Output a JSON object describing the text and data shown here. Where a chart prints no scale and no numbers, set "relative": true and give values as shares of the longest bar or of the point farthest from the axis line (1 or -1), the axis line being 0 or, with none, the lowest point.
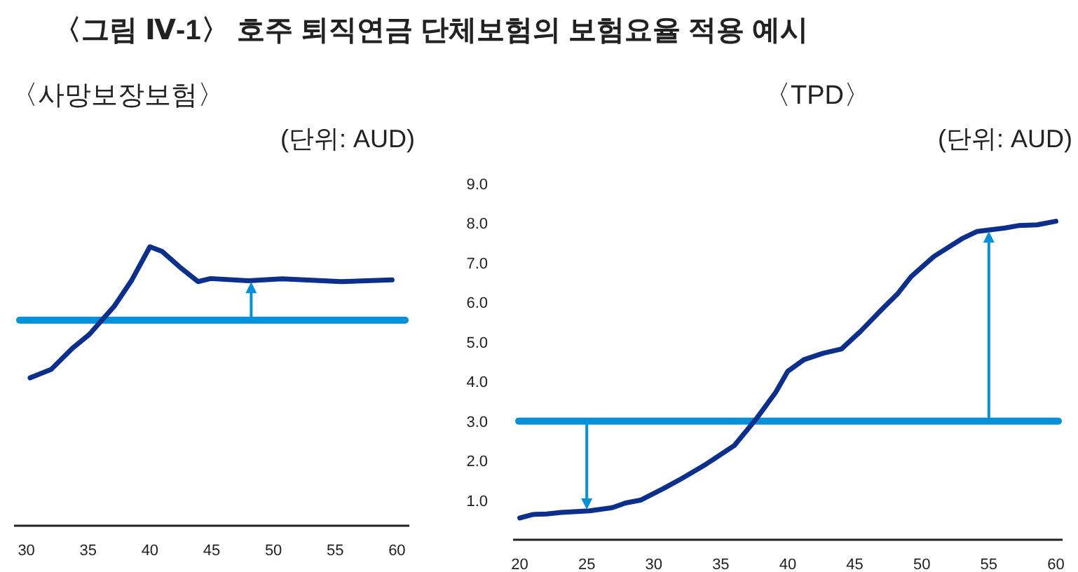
{
  "chart_data": [
    {
      "type": "line",
      "title": "〈사망보장보험〉",
      "relative": true,
      "annotations": [
        "〈그림 Ⅳ-1〉 호주 퇴직연금 단체보험의 보험요율 적용 예시",
        "(단위: AUD)"
      ],
      "xlim": [
        29,
        61
      ],
      "xticks": [
        30,
        35,
        40,
        45,
        50,
        55,
        60
      ],
      "series": [
        {
          "color": "#0b2f8a",
          "x": [
            30.3,
            32.0,
            33.7,
            35.1,
            37.1,
            38.5,
            40.0,
            41.0,
            42.4,
            43.9,
            44.9,
            48.0,
            50.7,
            55.5,
            59.6
          ],
          "values": [
            0.53,
            0.56,
            0.635,
            0.686,
            0.786,
            0.878,
            1,
            0.983,
            0.928,
            0.875,
            0.886,
            0.878,
            0.885,
            0.875,
            0.881
          ]
        }
      ],
      "ref_lines": [
        {
          "axis": "y",
          "value": 0.737,
          "color": "#0590d8"
        }
      ]
    },
    {
      "type": "line",
      "title": "〈TPD〉",
      "annotations": [
        "(단위: AUD)"
      ],
      "xlim": [
        19.5,
        60.5
      ],
      "xticks": [
        20,
        25,
        30,
        35,
        40,
        45,
        50,
        55,
        60
      ],
      "ylim": [
        0,
        9
      ],
      "yticks": [
        {
          "value": 1,
          "label": "1.0"
        },
        {
          "value": 2,
          "label": "2.0"
        },
        {
          "value": 3,
          "label": "3.0"
        },
        {
          "value": 4,
          "label": "4.0"
        },
        {
          "value": 5,
          "label": "5.0"
        },
        {
          "value": 6,
          "label": "6.0"
        },
        {
          "value": 7,
          "label": "7.0"
        },
        {
          "value": 8,
          "label": "8.0"
        },
        {
          "value": 9,
          "label": "9.0"
        }
      ],
      "series": [
        {
          "color": "#0b2f8a",
          "x": [
            20,
            21.0,
            22.0,
            23.1,
            25.2,
            26.9,
            27.9,
            29.0,
            30.7,
            32.1,
            33.9,
            36.0,
            37.7,
            39.1,
            40.0,
            41.2,
            42.6,
            44.0,
            45.4,
            47.1,
            48.2,
            49.2,
            50.9,
            53.0,
            54.1,
            56.2,
            57.2,
            58.6,
            60.0
          ],
          "values": [
            0.55,
            0.64,
            0.65,
            0.69,
            0.73,
            0.81,
            0.93,
            1.0,
            1.29,
            1.55,
            1.91,
            2.38,
            3.08,
            3.73,
            4.26,
            4.55,
            4.71,
            4.82,
            5.26,
            5.85,
            6.22,
            6.65,
            7.16,
            7.61,
            7.79,
            7.88,
            7.94,
            7.96,
            8.05
          ]
        }
      ],
      "ref_lines": [
        {
          "axis": "y",
          "value": 3,
          "color": "#0590d8"
        }
      ]
    }
  ]
}
